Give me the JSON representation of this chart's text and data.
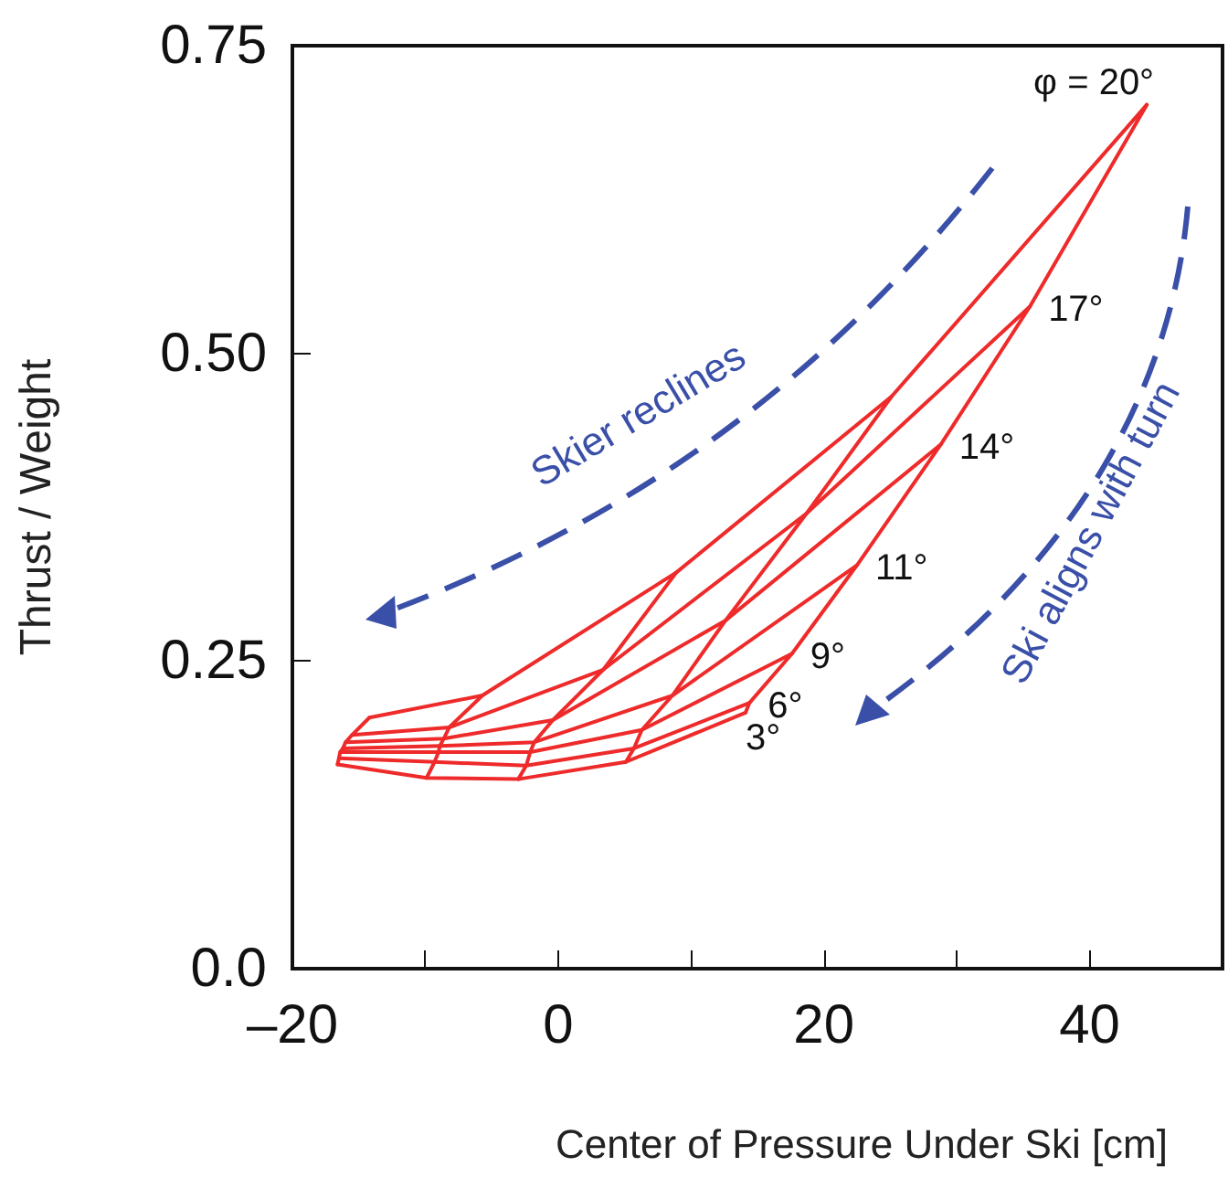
{
  "chart_data": {
    "type": "line",
    "xlabel": "Center of Pressure Under Ski [cm]",
    "ylabel": "Thrust / Weight",
    "xlim": [
      -20,
      50
    ],
    "xticks": [
      {
        "value": -20,
        "label": "–20"
      },
      {
        "value": -10,
        "label": null
      },
      0,
      {
        "value": 10,
        "label": null
      },
      20,
      {
        "value": 30,
        "label": null
      },
      40
    ],
    "ylim": [
      0,
      0.75
    ],
    "yticks": [
      {
        "value": 0,
        "label": "0.0"
      },
      0.25,
      {
        "value": 0.5,
        "label": "0.50"
      },
      0.75
    ],
    "grid": false,
    "legend": false,
    "marker": "none",
    "line_style": "solid",
    "annotations": [
      "Skier reclines",
      "Ski aligns with turn"
    ],
    "series": [
      {
        "name": "3°",
        "color": "#ee2a2a",
        "x": [
          -16.6,
          -9.9,
          -3.0,
          5.1,
          14.1
        ],
        "values": [
          0.166,
          0.155,
          0.154,
          0.168,
          0.208
        ]
      },
      {
        "name": "6°",
        "color": "#ee2a2a",
        "x": [
          -16.5,
          -9.3,
          -2.4,
          5.7,
          14.4
        ],
        "values": [
          0.171,
          0.168,
          0.165,
          0.179,
          0.216
        ]
      },
      {
        "name": "9°",
        "color": "#ee2a2a",
        "x": [
          -16.4,
          -9.0,
          -2.1,
          6.3,
          17.6
        ],
        "values": [
          0.176,
          0.176,
          0.176,
          0.194,
          0.256
        ]
      },
      {
        "name": "11°",
        "color": "#ee2a2a",
        "x": [
          -16.2,
          -8.9,
          -1.8,
          8.6,
          22.5
        ],
        "values": [
          0.179,
          0.181,
          0.184,
          0.222,
          0.328
        ]
      },
      {
        "name": "14°",
        "color": "#ee2a2a",
        "x": [
          -16.0,
          -8.6,
          -0.4,
          12.6,
          28.8
        ],
        "values": [
          0.184,
          0.187,
          0.202,
          0.283,
          0.426
        ]
      },
      {
        "name": "17°",
        "color": "#ee2a2a",
        "x": [
          -15.5,
          -8.2,
          3.4,
          18.7,
          35.5
        ],
        "values": [
          0.19,
          0.196,
          0.243,
          0.37,
          0.538
        ]
      },
      {
        "name": "φ = 20°",
        "color": "#ee2a2a",
        "x": [
          -14.2,
          -5.7,
          8.9,
          25.1,
          44.3
        ],
        "values": [
          0.204,
          0.222,
          0.322,
          0.465,
          0.702
        ]
      },
      {
        "color": "#ee2a2a",
        "x": [
          -16.6,
          -16.5,
          -16.4,
          -16.2,
          -16.0,
          -15.5,
          -14.2
        ],
        "values": [
          0.166,
          0.171,
          0.176,
          0.179,
          0.184,
          0.19,
          0.204
        ]
      },
      {
        "color": "#ee2a2a",
        "x": [
          -9.9,
          -9.3,
          -9.0,
          -8.9,
          -8.6,
          -8.2,
          -5.7
        ],
        "values": [
          0.155,
          0.168,
          0.176,
          0.181,
          0.187,
          0.196,
          0.222
        ]
      },
      {
        "color": "#ee2a2a",
        "x": [
          -3.0,
          -2.4,
          -2.1,
          -1.8,
          -0.4,
          3.4,
          8.9
        ],
        "values": [
          0.154,
          0.165,
          0.176,
          0.184,
          0.202,
          0.243,
          0.322
        ]
      },
      {
        "color": "#ee2a2a",
        "x": [
          5.1,
          5.7,
          6.3,
          8.6,
          12.6,
          18.7,
          25.1
        ],
        "values": [
          0.168,
          0.179,
          0.194,
          0.222,
          0.283,
          0.37,
          0.465
        ]
      },
      {
        "color": "#ee2a2a",
        "x": [
          14.1,
          14.4,
          17.6,
          22.5,
          28.8,
          35.5,
          44.3
        ],
        "values": [
          0.208,
          0.216,
          0.256,
          0.328,
          0.426,
          0.538,
          0.702
        ]
      }
    ]
  }
}
